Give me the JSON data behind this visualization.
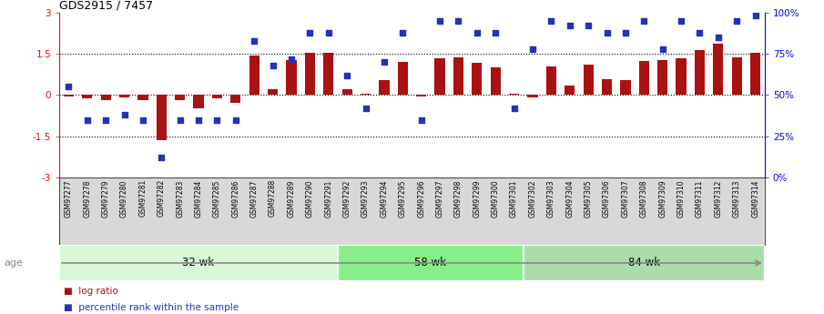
{
  "title": "GDS2915 / 7457",
  "samples": [
    "GSM97277",
    "GSM97278",
    "GSM97279",
    "GSM97280",
    "GSM97281",
    "GSM97282",
    "GSM97283",
    "GSM97284",
    "GSM97285",
    "GSM97286",
    "GSM97287",
    "GSM97288",
    "GSM97289",
    "GSM97290",
    "GSM97291",
    "GSM97292",
    "GSM97293",
    "GSM97294",
    "GSM97295",
    "GSM97296",
    "GSM97297",
    "GSM97298",
    "GSM97299",
    "GSM97300",
    "GSM97301",
    "GSM97302",
    "GSM97303",
    "GSM97304",
    "GSM97305",
    "GSM97306",
    "GSM97307",
    "GSM97308",
    "GSM97309",
    "GSM97310",
    "GSM97311",
    "GSM97312",
    "GSM97313",
    "GSM97314"
  ],
  "log_ratio": [
    -0.05,
    -0.12,
    -0.18,
    -0.1,
    -0.2,
    -1.65,
    -0.18,
    -0.5,
    -0.12,
    -0.28,
    1.42,
    0.22,
    1.28,
    1.52,
    1.52,
    0.22,
    0.05,
    0.55,
    1.2,
    -0.05,
    1.35,
    1.38,
    1.18,
    1.0,
    0.05,
    -0.08,
    1.05,
    0.35,
    1.12,
    0.58,
    0.55,
    1.25,
    1.28,
    1.35,
    1.65,
    1.88,
    1.38,
    1.55
  ],
  "percentile": [
    55,
    35,
    35,
    38,
    35,
    12,
    35,
    35,
    35,
    35,
    83,
    68,
    72,
    88,
    88,
    62,
    42,
    70,
    88,
    35,
    95,
    95,
    88,
    88,
    42,
    78,
    95,
    92,
    92,
    88,
    88,
    95,
    78,
    95,
    88,
    85,
    95,
    98
  ],
  "groups": [
    {
      "label": "32 wk",
      "start": 0,
      "end": 15,
      "color": "#d8f8d8"
    },
    {
      "label": "58 wk",
      "start": 15,
      "end": 25,
      "color": "#88ee88"
    },
    {
      "label": "84 wk",
      "start": 25,
      "end": 38,
      "color": "#aaddaa"
    }
  ],
  "ylim": [
    -3,
    3
  ],
  "yticks_left": [
    -3,
    -1.5,
    0,
    1.5,
    3
  ],
  "right_pct_ticks": [
    0,
    25,
    50,
    75,
    100
  ],
  "hlines": [
    -1.5,
    0,
    1.5
  ],
  "bar_color": "#aa1111",
  "dot_color": "#2233bb",
  "xlabels_bg": "#d8d8d8",
  "background_color": "#ffffff",
  "age_label": "age",
  "legend_bar": "log ratio",
  "legend_dot": "percentile rank within the sample",
  "title_fontsize": 9
}
